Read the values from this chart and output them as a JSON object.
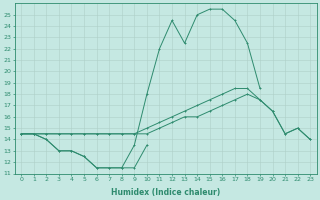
{
  "xlabel": "Humidex (Indice chaleur)",
  "x_values": [
    0,
    1,
    2,
    3,
    4,
    5,
    6,
    7,
    8,
    9,
    10,
    11,
    12,
    13,
    14,
    15,
    16,
    17,
    18,
    19,
    20,
    21,
    22,
    23
  ],
  "line_peak": [
    14.5,
    14.5,
    14.0,
    13.0,
    13.0,
    12.5,
    11.5,
    11.5,
    11.5,
    13.5,
    18.0,
    22.0,
    24.5,
    22.5,
    25.0,
    25.5,
    25.5,
    24.5,
    22.5,
    18.5,
    null,
    null,
    null,
    null
  ],
  "line_upper": [
    14.5,
    14.5,
    14.5,
    14.5,
    14.5,
    14.5,
    14.5,
    14.5,
    14.5,
    14.5,
    15.0,
    15.5,
    16.0,
    16.5,
    17.0,
    17.5,
    18.0,
    18.5,
    18.5,
    17.5,
    16.5,
    14.5,
    15.0,
    14.0
  ],
  "line_lower": [
    14.5,
    14.5,
    14.5,
    14.5,
    14.5,
    14.5,
    14.5,
    14.5,
    14.5,
    14.5,
    14.5,
    15.0,
    15.5,
    16.0,
    16.0,
    16.5,
    17.0,
    17.5,
    18.0,
    17.5,
    16.5,
    14.5,
    15.0,
    14.0
  ],
  "line_dip": [
    14.5,
    14.5,
    14.0,
    13.0,
    13.0,
    12.5,
    11.5,
    11.5,
    11.5,
    11.5,
    13.5,
    null,
    null,
    null,
    null,
    null,
    null,
    null,
    null,
    null,
    null,
    null,
    null,
    null
  ],
  "ylim": [
    11,
    26
  ],
  "xlim": [
    -0.5,
    23.5
  ],
  "yticks": [
    11,
    12,
    13,
    14,
    15,
    16,
    17,
    18,
    19,
    20,
    21,
    22,
    23,
    24,
    25
  ],
  "xticks": [
    0,
    1,
    2,
    3,
    4,
    5,
    6,
    7,
    8,
    9,
    10,
    11,
    12,
    13,
    14,
    15,
    16,
    17,
    18,
    19,
    20,
    21,
    22,
    23
  ],
  "line_color": "#2e8b6e",
  "bg_color": "#c5e8e2",
  "grid_color": "#aed0c8"
}
